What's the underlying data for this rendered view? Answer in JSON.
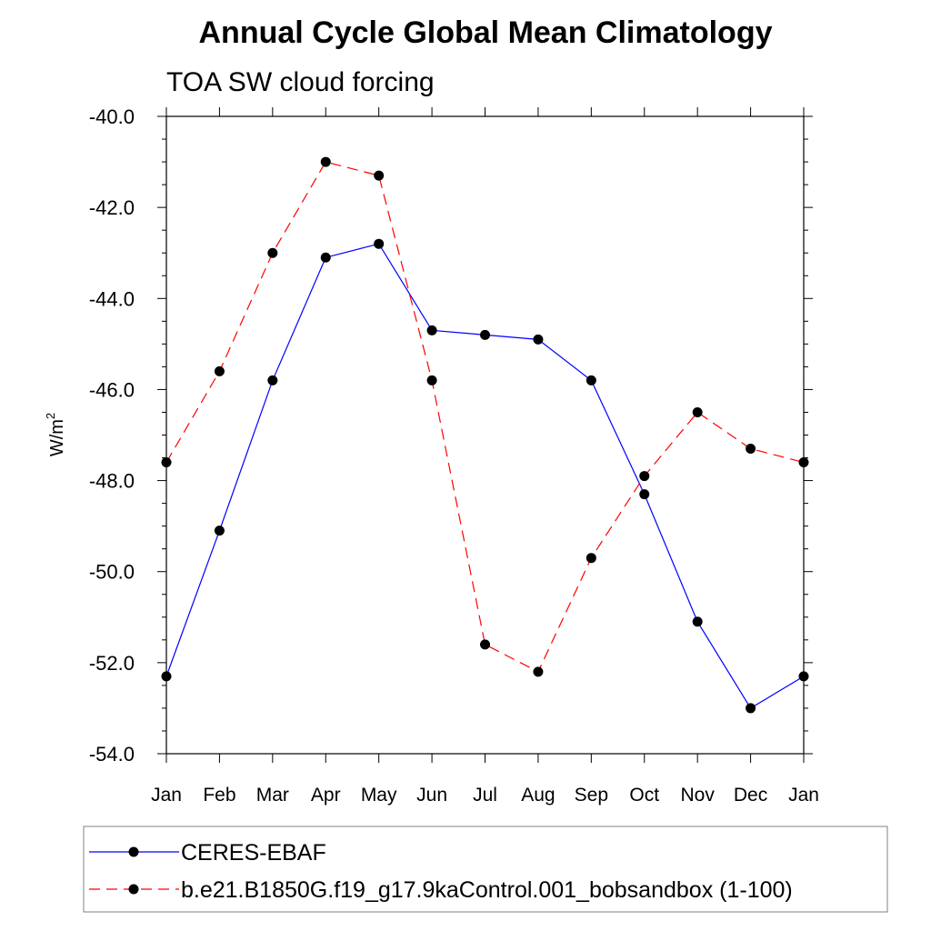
{
  "chart_data": {
    "type": "line",
    "title": "Annual Cycle Global Mean Climatology",
    "subtitle": "TOA SW cloud forcing",
    "xlabel": "",
    "ylabel": "W/m",
    "ylabel_superscript": "2",
    "categories": [
      "Jan",
      "Feb",
      "Mar",
      "Apr",
      "May",
      "Jun",
      "Jul",
      "Aug",
      "Sep",
      "Oct",
      "Nov",
      "Dec",
      "Jan"
    ],
    "ylim": [
      -54.0,
      -40.0
    ],
    "y_ticks": [
      -40.0,
      -42.0,
      -44.0,
      -46.0,
      -48.0,
      -50.0,
      -52.0,
      -54.0
    ],
    "y_tick_labels": [
      "-40.0",
      "-42.0",
      "-44.0",
      "-46.0",
      "-48.0",
      "-50.0",
      "-52.0",
      "-54.0"
    ],
    "legend_position": "bottom",
    "series": [
      {
        "name": "CERES-EBAF",
        "color": "#0000ff",
        "line_style": "solid",
        "marker_color": "#000000",
        "values": [
          -52.3,
          -49.1,
          -45.8,
          -43.1,
          -42.8,
          -44.7,
          -44.8,
          -44.9,
          -45.8,
          -48.3,
          -51.1,
          -53.0,
          -52.3
        ]
      },
      {
        "name": "b.e21.B1850G.f19_g17.9kaControl.001_bobsandbox (1-100)",
        "color": "#ff0000",
        "line_style": "dashed",
        "marker_color": "#000000",
        "values": [
          -47.6,
          -45.6,
          -43.0,
          -41.0,
          -41.3,
          -45.8,
          -51.6,
          -52.2,
          -49.7,
          -47.9,
          -46.5,
          -47.3,
          -47.6
        ]
      }
    ]
  }
}
